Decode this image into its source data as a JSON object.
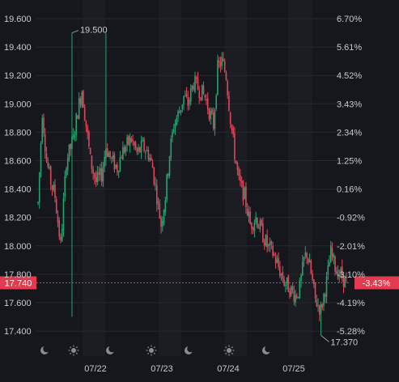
{
  "theme": {
    "background": "#16171c",
    "session_band": "#1c1d22",
    "grid": "#262830",
    "up_color": "#26a270",
    "down_color": "#e0455a",
    "label_color": "#c8c9cc",
    "current_price_color": "#e23a4e"
  },
  "chart_data": {
    "type": "candlestick",
    "title": "",
    "x_tick_labels": [
      "07/22",
      "07/23",
      "07/24",
      "07/25"
    ],
    "y_left_tick_labels": [
      "19.600",
      "19.400",
      "19.200",
      "19.000",
      "18.800",
      "18.600",
      "18.400",
      "18.200",
      "18.000",
      "17.800",
      "17.600",
      "17.400"
    ],
    "y_right_tick_labels": [
      "6.70%",
      "5.61%",
      "4.52%",
      "3.43%",
      "2.34%",
      "1.25%",
      "0.16%",
      "-0.92%",
      "-2.01%",
      "-3.10%",
      "-4.19%",
      "-5.28%"
    ],
    "ylim": [
      17.35,
      19.65
    ],
    "current_price": {
      "label": "17.740",
      "change_label": "-3.43%",
      "value": 17.74
    },
    "high_marker": {
      "label": "19.500",
      "value": 19.5
    },
    "low_marker": {
      "label": "17.370",
      "value": 17.37
    },
    "session_icons": [
      "moon-icon",
      "sun-icon",
      "moon-icon",
      "sun-icon",
      "moon-icon",
      "sun-icon",
      "moon-icon"
    ],
    "keypoints": [
      [
        0,
        18.3
      ],
      [
        3,
        18.95
      ],
      [
        6,
        18.6
      ],
      [
        9,
        18.45
      ],
      [
        12,
        18.35
      ],
      [
        16,
        18.0
      ],
      [
        20,
        18.6
      ],
      [
        25,
        18.75
      ],
      [
        28,
        18.95
      ],
      [
        31,
        19.1
      ],
      [
        34,
        18.85
      ],
      [
        37,
        18.6
      ],
      [
        41,
        18.45
      ],
      [
        45,
        18.5
      ],
      [
        48,
        18.7
      ],
      [
        52,
        18.6
      ],
      [
        56,
        18.55
      ],
      [
        59,
        18.65
      ],
      [
        62,
        18.7
      ],
      [
        66,
        18.75
      ],
      [
        70,
        18.65
      ],
      [
        74,
        18.7
      ],
      [
        78,
        18.65
      ],
      [
        81,
        18.55
      ],
      [
        84,
        18.35
      ],
      [
        87,
        18.15
      ],
      [
        90,
        18.35
      ],
      [
        93,
        18.65
      ],
      [
        96,
        18.85
      ],
      [
        100,
        18.95
      ],
      [
        103,
        19.05
      ],
      [
        106,
        19.0
      ],
      [
        110,
        19.15
      ],
      [
        114,
        19.1
      ],
      [
        118,
        19.05
      ],
      [
        121,
        18.95
      ],
      [
        124,
        18.85
      ],
      [
        127,
        19.25
      ],
      [
        130,
        19.3
      ],
      [
        133,
        19.2
      ],
      [
        136,
        18.9
      ],
      [
        139,
        18.65
      ],
      [
        142,
        18.45
      ],
      [
        146,
        18.35
      ],
      [
        150,
        18.15
      ],
      [
        154,
        18.2
      ],
      [
        158,
        18.1
      ],
      [
        162,
        18.0
      ],
      [
        166,
        17.95
      ],
      [
        170,
        17.85
      ],
      [
        174,
        17.75
      ],
      [
        178,
        17.7
      ],
      [
        182,
        17.65
      ],
      [
        185,
        17.7
      ],
      [
        188,
        17.9
      ],
      [
        190,
        17.95
      ],
      [
        193,
        17.8
      ],
      [
        196,
        17.62
      ],
      [
        200,
        17.55
      ],
      [
        204,
        17.75
      ],
      [
        207,
        17.95
      ],
      [
        210,
        17.85
      ],
      [
        214,
        17.8
      ],
      [
        218,
        17.74
      ]
    ]
  }
}
